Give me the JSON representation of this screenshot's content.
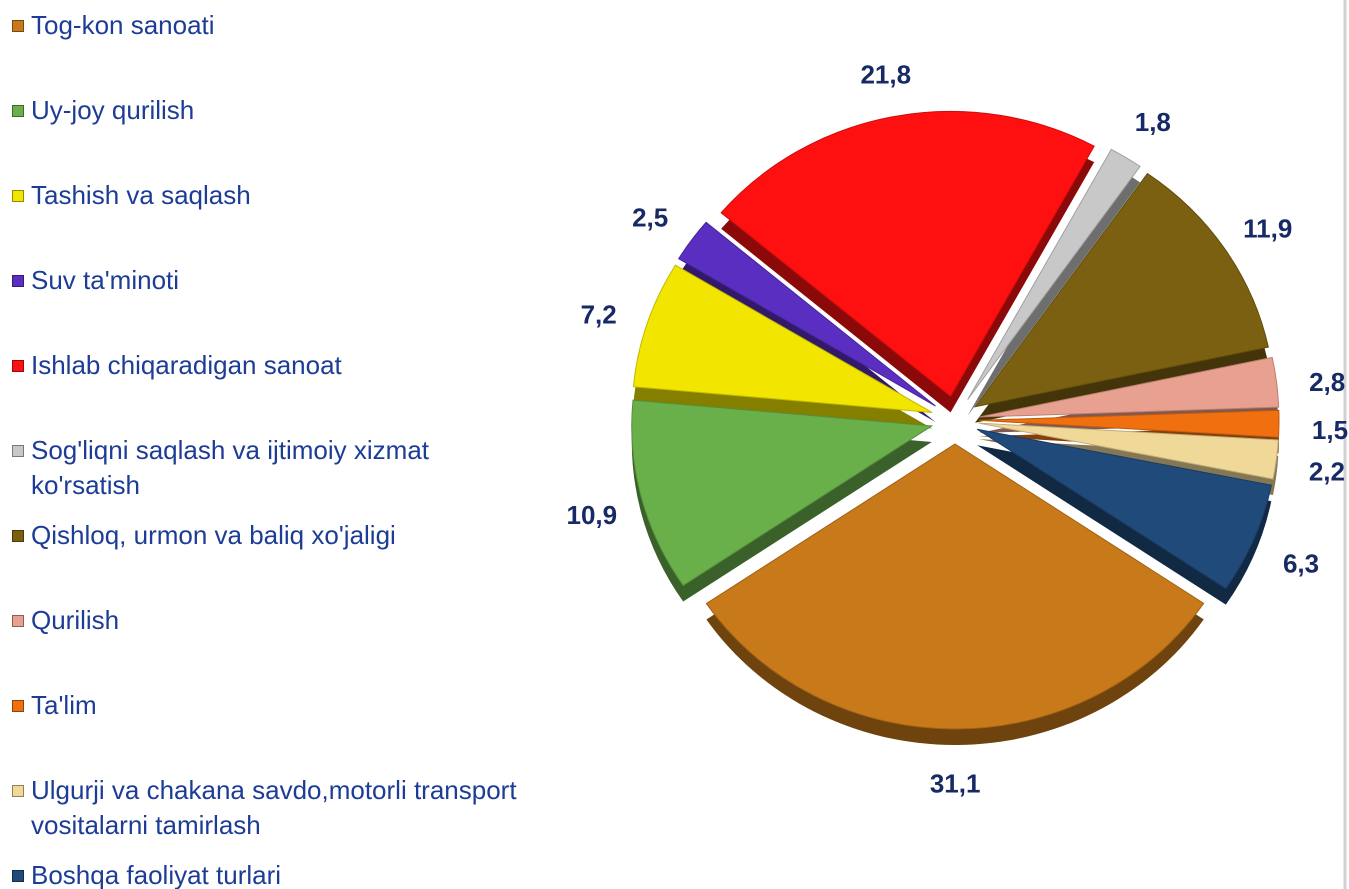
{
  "chart_data": {
    "type": "pie",
    "categories": [
      "Tog-kon sanoati",
      "Uy-joy qurilish",
      "Tashish va saqlash",
      "Suv ta'minoti",
      "Ishlab chiqaradigan sanoat",
      "Sog'liqni saqlash va ijtimoiy xizmat ko'rsatish",
      "Qishloq, urmon va baliq xo'jaligi",
      "Qurilish",
      "Ta'lim",
      "Ulgurji va chakana savdo,motorli transport vositalarni tamirlash",
      "Boshqa  faoliyat  turlari"
    ],
    "values": [
      31.1,
      10.9,
      7.2,
      2.5,
      21.8,
      1.8,
      11.9,
      2.8,
      1.5,
      2.2,
      6.3
    ],
    "value_labels": [
      "31,1",
      "10,9",
      "7,2",
      "2,5",
      "21,8",
      "1,8",
      "11,9",
      "2,8",
      "1,5",
      "2,2",
      "6,3"
    ],
    "colors": [
      "#c87a1a",
      "#6ab04a",
      "#f2e600",
      "#5a2ec0",
      "#ff1010",
      "#c8c8c8",
      "#7a6010",
      "#e8a090",
      "#f07010",
      "#f0d898",
      "#1f4a7a"
    ],
    "legend": "left"
  }
}
